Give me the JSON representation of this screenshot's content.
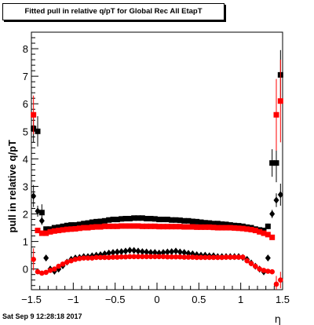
{
  "title": "Fitted pull in relative q/pT for Global Rec All EtapT",
  "footer_stamp": "Sat Sep  9 12:28:18 2017",
  "colors": {
    "series_black": "#000000",
    "series_red": "#ff0000",
    "frame": "#000000"
  },
  "chart_data": {
    "type": "scatter",
    "title": "Fitted pull in relative q/pT for Global Rec All EtapT",
    "xlabel": "η",
    "ylabel": "pull in relative q/pT",
    "xlim": [
      -1.5,
      1.5
    ],
    "ylim": [
      -0.75,
      8.6
    ],
    "xticks": [
      "−1.5",
      "−1",
      "−0.5",
      "0",
      "0.5",
      "1",
      "1.5"
    ],
    "yticks": [
      "0",
      "1",
      "2",
      "3",
      "4",
      "5",
      "6",
      "7",
      "8"
    ],
    "grid": false,
    "legend": "none",
    "series": [
      {
        "marker": "square",
        "color": "#000000",
        "x": [
          -1.475,
          -1.425,
          -1.375,
          -1.325,
          -1.275,
          -1.225,
          -1.175,
          -1.125,
          -1.075,
          -1.025,
          -0.975,
          -0.925,
          -0.875,
          -0.825,
          -0.775,
          -0.725,
          -0.675,
          -0.625,
          -0.575,
          -0.525,
          -0.475,
          -0.425,
          -0.375,
          -0.325,
          -0.275,
          -0.225,
          -0.175,
          -0.125,
          -0.075,
          -0.025,
          0.025,
          0.075,
          0.125,
          0.175,
          0.225,
          0.275,
          0.325,
          0.375,
          0.425,
          0.475,
          0.525,
          0.575,
          0.625,
          0.675,
          0.725,
          0.775,
          0.825,
          0.875,
          0.925,
          0.975,
          1.025,
          1.075,
          1.125,
          1.175,
          1.225,
          1.275,
          1.325,
          1.375,
          1.425,
          1.475
        ],
        "y": [
          5.1,
          5.0,
          2.05,
          1.45,
          1.45,
          1.5,
          1.52,
          1.55,
          1.58,
          1.6,
          1.6,
          1.62,
          1.65,
          1.67,
          1.7,
          1.72,
          1.73,
          1.75,
          1.78,
          1.8,
          1.8,
          1.82,
          1.83,
          1.83,
          1.85,
          1.85,
          1.85,
          1.83,
          1.83,
          1.82,
          1.8,
          1.8,
          1.8,
          1.78,
          1.78,
          1.77,
          1.75,
          1.75,
          1.73,
          1.72,
          1.7,
          1.68,
          1.67,
          1.65,
          1.65,
          1.63,
          1.62,
          1.6,
          1.58,
          1.57,
          1.55,
          1.52,
          1.5,
          1.45,
          1.42,
          1.4,
          1.55,
          3.85,
          3.85,
          7.05
        ],
        "err": [
          0.5,
          0.55,
          0.3,
          0.05,
          0.03,
          0.02,
          0.02,
          0.02,
          0.02,
          0.02,
          0.02,
          0.02,
          0.02,
          0.02,
          0.02,
          0.02,
          0.02,
          0.02,
          0.02,
          0.02,
          0.02,
          0.02,
          0.02,
          0.02,
          0.02,
          0.02,
          0.02,
          0.02,
          0.02,
          0.02,
          0.02,
          0.02,
          0.02,
          0.02,
          0.02,
          0.02,
          0.02,
          0.02,
          0.02,
          0.02,
          0.02,
          0.02,
          0.02,
          0.02,
          0.02,
          0.02,
          0.02,
          0.02,
          0.02,
          0.02,
          0.02,
          0.02,
          0.02,
          0.02,
          0.03,
          0.04,
          0.1,
          0.5,
          0.7,
          0.9
        ]
      },
      {
        "marker": "square",
        "color": "#ff0000",
        "x": [
          -1.475,
          -1.425,
          -1.375,
          -1.325,
          -1.275,
          -1.225,
          -1.175,
          -1.125,
          -1.075,
          -1.025,
          -0.975,
          -0.925,
          -0.875,
          -0.825,
          -0.775,
          -0.725,
          -0.675,
          -0.625,
          -0.575,
          -0.525,
          -0.475,
          -0.425,
          -0.375,
          -0.325,
          -0.275,
          -0.225,
          -0.175,
          -0.125,
          -0.075,
          -0.025,
          0.025,
          0.075,
          0.125,
          0.175,
          0.225,
          0.275,
          0.325,
          0.375,
          0.425,
          0.475,
          0.525,
          0.575,
          0.625,
          0.675,
          0.725,
          0.775,
          0.825,
          0.875,
          0.925,
          0.975,
          1.025,
          1.075,
          1.125,
          1.175,
          1.225,
          1.275,
          1.325,
          1.375,
          1.425,
          1.475
        ],
        "y": [
          5.6,
          1.4,
          1.3,
          1.3,
          1.35,
          1.38,
          1.4,
          1.42,
          1.44,
          1.45,
          1.46,
          1.48,
          1.5,
          1.5,
          1.52,
          1.53,
          1.53,
          1.55,
          1.55,
          1.55,
          1.55,
          1.56,
          1.56,
          1.56,
          1.56,
          1.56,
          1.55,
          1.55,
          1.55,
          1.55,
          1.54,
          1.54,
          1.54,
          1.54,
          1.54,
          1.54,
          1.53,
          1.53,
          1.53,
          1.52,
          1.52,
          1.52,
          1.52,
          1.51,
          1.5,
          1.5,
          1.5,
          1.5,
          1.49,
          1.48,
          1.47,
          1.45,
          1.43,
          1.4,
          1.35,
          1.3,
          1.25,
          1.15,
          5.6,
          6.1
        ],
        "err": [
          0.7,
          0.08,
          0.04,
          0.03,
          0.02,
          0.02,
          0.02,
          0.02,
          0.02,
          0.02,
          0.02,
          0.02,
          0.02,
          0.02,
          0.02,
          0.02,
          0.02,
          0.02,
          0.02,
          0.02,
          0.02,
          0.02,
          0.02,
          0.02,
          0.02,
          0.02,
          0.02,
          0.02,
          0.02,
          0.02,
          0.02,
          0.02,
          0.02,
          0.02,
          0.02,
          0.02,
          0.02,
          0.02,
          0.02,
          0.02,
          0.02,
          0.02,
          0.02,
          0.02,
          0.02,
          0.02,
          0.02,
          0.02,
          0.02,
          0.02,
          0.02,
          0.02,
          0.02,
          0.02,
          0.02,
          0.03,
          0.04,
          0.08,
          1.3,
          1.5
        ]
      },
      {
        "marker": "diamond",
        "color": "#000000",
        "x": [
          -1.475,
          -1.425,
          -1.375,
          -1.325,
          -1.275,
          -1.225,
          -1.175,
          -1.125,
          -1.075,
          -1.025,
          -0.975,
          -0.925,
          -0.875,
          -0.825,
          -0.775,
          -0.725,
          -0.675,
          -0.625,
          -0.575,
          -0.525,
          -0.475,
          -0.425,
          -0.375,
          -0.325,
          -0.275,
          -0.225,
          -0.175,
          -0.125,
          -0.075,
          -0.025,
          0.025,
          0.075,
          0.125,
          0.175,
          0.225,
          0.275,
          0.325,
          0.375,
          0.425,
          0.475,
          0.525,
          0.575,
          0.625,
          0.675,
          0.725,
          0.775,
          0.825,
          0.875,
          0.925,
          0.975,
          1.025,
          1.075,
          1.125,
          1.175,
          1.225,
          1.275,
          1.325,
          1.375,
          1.425,
          1.475
        ],
        "y": [
          2.65,
          2.1,
          1.75,
          0.4,
          0.0,
          -0.08,
          0.0,
          0.12,
          0.25,
          0.35,
          0.4,
          0.42,
          0.45,
          0.45,
          0.48,
          0.5,
          0.52,
          0.55,
          0.58,
          0.6,
          0.62,
          0.63,
          0.65,
          0.68,
          0.67,
          0.65,
          0.63,
          0.62,
          0.6,
          0.6,
          0.58,
          0.6,
          0.62,
          0.63,
          0.65,
          0.62,
          0.6,
          0.57,
          0.55,
          0.52,
          0.5,
          0.5,
          0.48,
          0.48,
          0.45,
          0.45,
          0.45,
          0.45,
          0.45,
          0.45,
          0.42,
          0.35,
          0.22,
          0.1,
          0.0,
          -0.1,
          0.4,
          2.0,
          2.5,
          2.7
        ],
        "err": [
          0.4,
          0.2,
          0.15,
          0.03,
          0.02,
          0.02,
          0.02,
          0.02,
          0.02,
          0.02,
          0.02,
          0.02,
          0.02,
          0.02,
          0.02,
          0.02,
          0.02,
          0.02,
          0.02,
          0.02,
          0.02,
          0.02,
          0.02,
          0.02,
          0.02,
          0.02,
          0.02,
          0.02,
          0.02,
          0.02,
          0.02,
          0.02,
          0.02,
          0.02,
          0.02,
          0.02,
          0.02,
          0.02,
          0.02,
          0.02,
          0.02,
          0.02,
          0.02,
          0.02,
          0.02,
          0.02,
          0.02,
          0.02,
          0.02,
          0.02,
          0.02,
          0.02,
          0.02,
          0.02,
          0.02,
          0.03,
          0.05,
          0.15,
          0.25,
          0.4
        ]
      },
      {
        "marker": "circle",
        "color": "#ff0000",
        "x": [
          -1.475,
          -1.425,
          -1.375,
          -1.325,
          -1.275,
          -1.225,
          -1.175,
          -1.125,
          -1.075,
          -1.025,
          -0.975,
          -0.925,
          -0.875,
          -0.825,
          -0.775,
          -0.725,
          -0.675,
          -0.625,
          -0.575,
          -0.525,
          -0.475,
          -0.425,
          -0.375,
          -0.325,
          -0.275,
          -0.225,
          -0.175,
          -0.125,
          -0.075,
          -0.025,
          0.025,
          0.075,
          0.125,
          0.175,
          0.225,
          0.275,
          0.325,
          0.375,
          0.425,
          0.475,
          0.525,
          0.575,
          0.625,
          0.675,
          0.725,
          0.775,
          0.825,
          0.875,
          0.925,
          0.975,
          1.025,
          1.075,
          1.125,
          1.175,
          1.225,
          1.275,
          1.325,
          1.375,
          1.425,
          1.475
        ],
        "y": [
          0.35,
          -0.1,
          -0.15,
          -0.12,
          -0.05,
          0.0,
          0.1,
          0.18,
          0.25,
          0.3,
          0.35,
          0.38,
          0.4,
          0.4,
          0.4,
          0.42,
          0.42,
          0.42,
          0.42,
          0.43,
          0.43,
          0.44,
          0.44,
          0.45,
          0.45,
          0.45,
          0.45,
          0.45,
          0.45,
          0.45,
          0.45,
          0.45,
          0.44,
          0.44,
          0.44,
          0.44,
          0.43,
          0.43,
          0.43,
          0.42,
          0.42,
          0.42,
          0.42,
          0.42,
          0.42,
          0.42,
          0.43,
          0.43,
          0.43,
          0.43,
          0.43,
          0.3,
          0.2,
          0.1,
          0.0,
          -0.05,
          -0.08,
          -0.1,
          -0.55,
          -0.4
        ],
        "err": [
          0.4,
          0.05,
          0.03,
          0.02,
          0.02,
          0.02,
          0.02,
          0.02,
          0.02,
          0.02,
          0.02,
          0.02,
          0.02,
          0.02,
          0.02,
          0.02,
          0.02,
          0.02,
          0.02,
          0.02,
          0.02,
          0.02,
          0.02,
          0.02,
          0.02,
          0.02,
          0.02,
          0.02,
          0.02,
          0.02,
          0.02,
          0.02,
          0.02,
          0.02,
          0.02,
          0.02,
          0.02,
          0.02,
          0.02,
          0.02,
          0.02,
          0.02,
          0.02,
          0.02,
          0.02,
          0.02,
          0.02,
          0.02,
          0.02,
          0.02,
          0.02,
          0.02,
          0.02,
          0.02,
          0.02,
          0.02,
          0.03,
          0.05,
          0.3,
          0.3
        ]
      }
    ]
  }
}
